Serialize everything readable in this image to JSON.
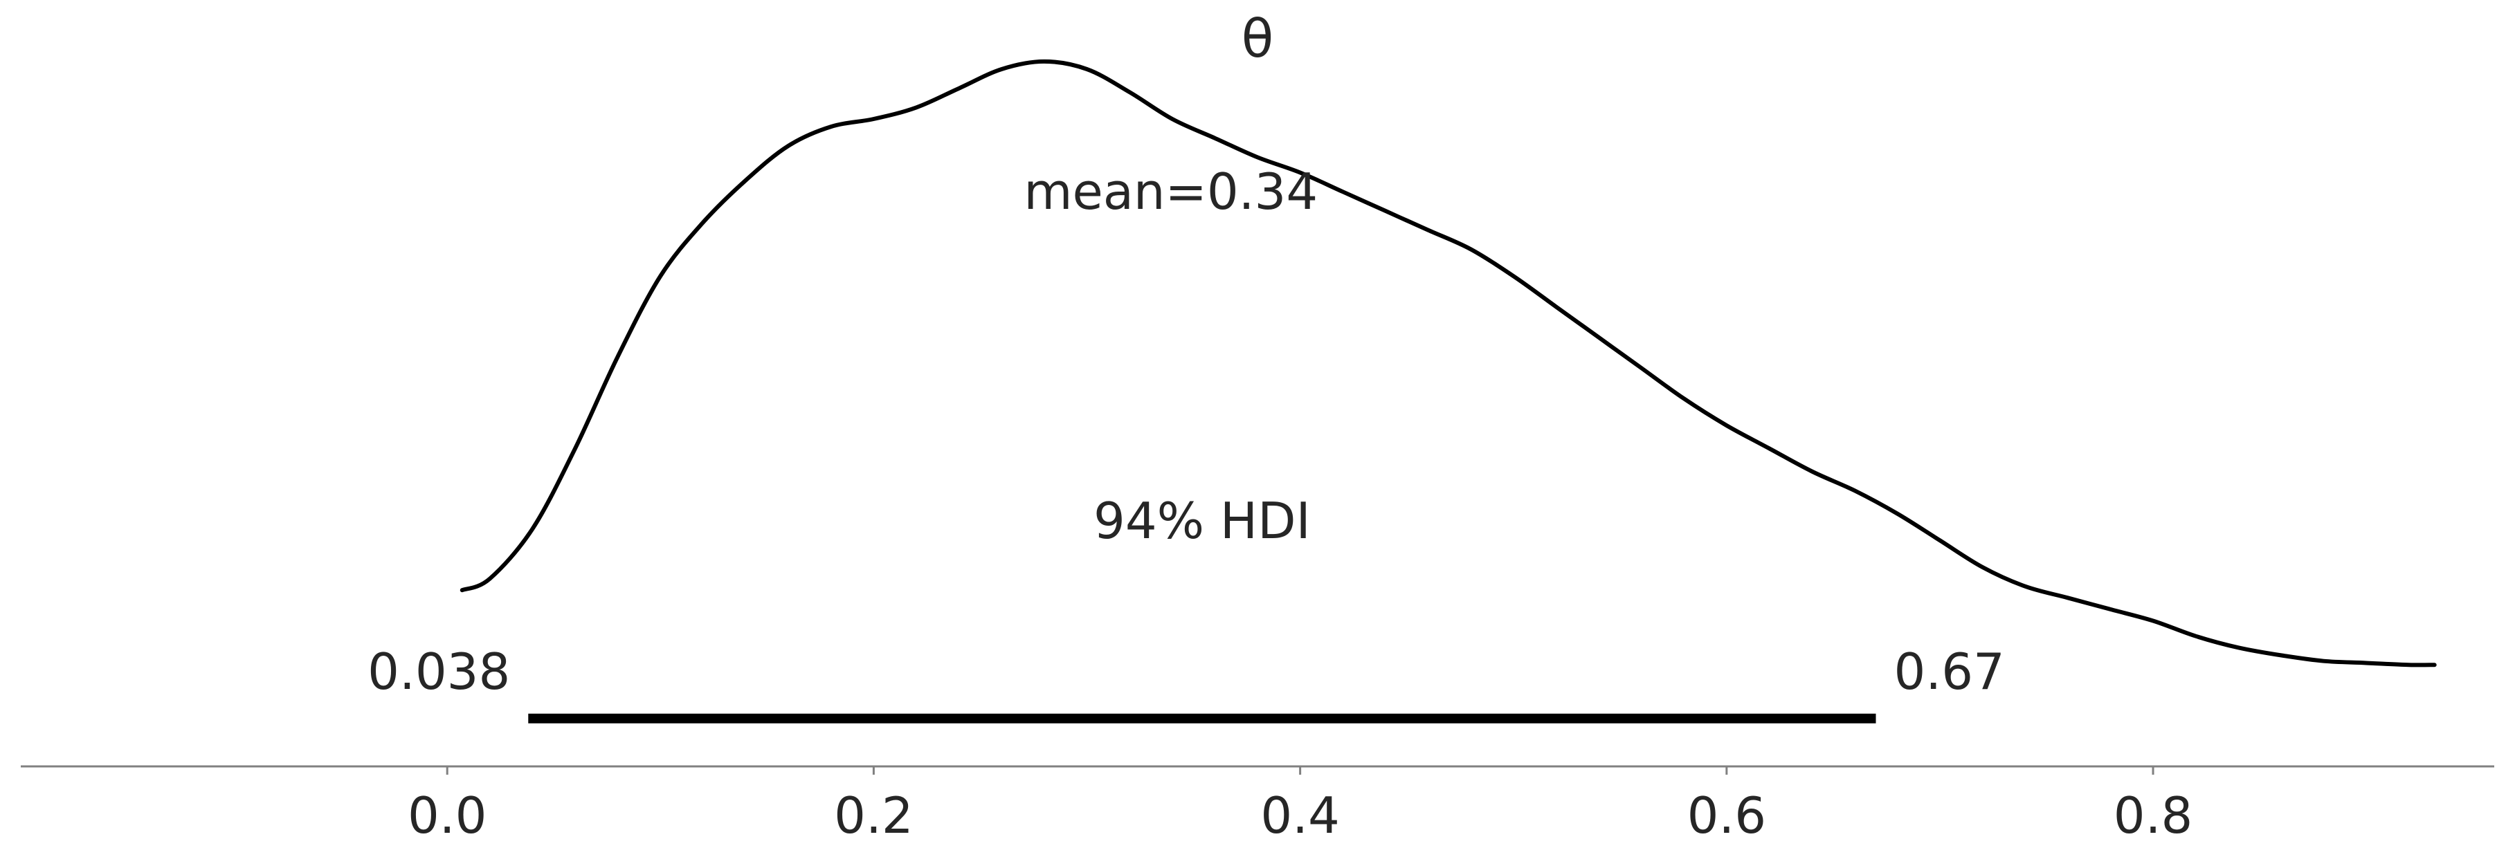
{
  "chart_data": {
    "type": "line",
    "title": "θ",
    "xlabel": "",
    "ylabel": "",
    "xlim": [
      -0.2,
      0.96
    ],
    "ylim": [
      0,
      1.95
    ],
    "xticks": [
      0.0,
      0.2,
      0.4,
      0.6,
      0.8
    ],
    "xtick_labels": [
      "0.0",
      "0.2",
      "0.4",
      "0.6",
      "0.8"
    ],
    "grid": false,
    "legend": "none",
    "colors": {
      "density": "#000000",
      "hdi": "#000000",
      "axis": "#808080",
      "text": "#262626"
    },
    "series": [
      {
        "x": [
          0.007,
          0.02,
          0.04,
          0.06,
          0.08,
          0.1,
          0.12,
          0.14,
          0.16,
          0.18,
          0.2,
          0.22,
          0.24,
          0.26,
          0.28,
          0.3,
          0.32,
          0.34,
          0.36,
          0.38,
          0.4,
          0.42,
          0.44,
          0.46,
          0.48,
          0.5,
          0.52,
          0.54,
          0.56,
          0.58,
          0.6,
          0.62,
          0.64,
          0.66,
          0.68,
          0.7,
          0.72,
          0.74,
          0.76,
          0.78,
          0.8,
          0.82,
          0.84,
          0.86,
          0.88,
          0.9,
          0.92,
          0.932
        ],
        "values": [
          0.46,
          0.49,
          0.62,
          0.83,
          1.07,
          1.28,
          1.42,
          1.53,
          1.62,
          1.67,
          1.69,
          1.72,
          1.77,
          1.82,
          1.84,
          1.82,
          1.76,
          1.69,
          1.64,
          1.59,
          1.55,
          1.5,
          1.45,
          1.4,
          1.35,
          1.28,
          1.2,
          1.12,
          1.04,
          0.96,
          0.89,
          0.83,
          0.77,
          0.72,
          0.66,
          0.59,
          0.52,
          0.47,
          0.44,
          0.41,
          0.38,
          0.34,
          0.31,
          0.29,
          0.275,
          0.27,
          0.265,
          0.265
        ]
      }
    ],
    "mean": 0.34,
    "mean_label": "mean=0.34",
    "hdi": {
      "low": 0.038,
      "high": 0.67,
      "low_label": "0.038",
      "high_label": "0.67",
      "label": "94% HDI"
    }
  }
}
